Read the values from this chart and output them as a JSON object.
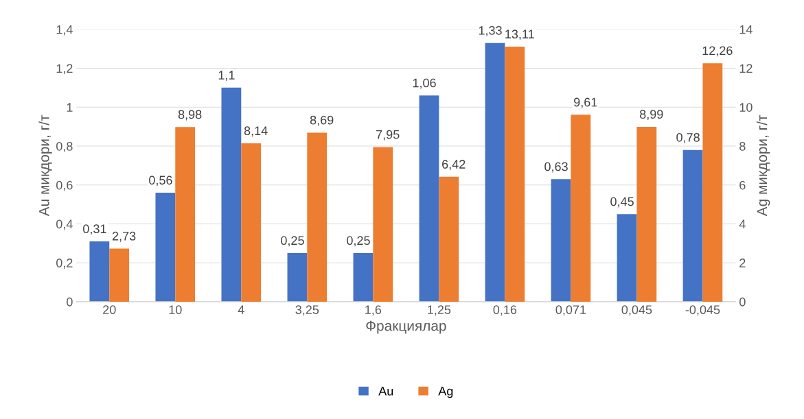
{
  "chart_data": {
    "type": "bar",
    "xlabel": "Фракциялар",
    "ylabel": "Au микдори, г/т",
    "y2label": "Ag микдори, г/т",
    "categories": [
      "20",
      "10",
      "4",
      "3,25",
      "1,6",
      "1,25",
      "0,16",
      "0,071",
      "0,045",
      "-0,045"
    ],
    "series": [
      {
        "name": "Au",
        "color": "#4472c4",
        "values": [
          0.31,
          0.56,
          1.1,
          0.25,
          0.25,
          1.06,
          1.33,
          0.63,
          0.45,
          0.78
        ],
        "value_labels": [
          "0,31",
          "0,56",
          "1,1",
          "0,25",
          "0,25",
          "1,06",
          "1,33",
          "0,63",
          "0,45",
          "0,78"
        ]
      },
      {
        "name": "Ag",
        "color": "#ed7d31",
        "axis": "y2",
        "values": [
          2.73,
          8.98,
          8.14,
          8.69,
          7.95,
          6.42,
          13.11,
          9.61,
          8.99,
          12.26
        ],
        "value_labels": [
          "2,73",
          "8,98",
          "8,14",
          "8,69",
          "7,95",
          "6,42",
          "13,11",
          "9,61",
          "8,99",
          "12,26"
        ]
      }
    ],
    "ylim": [
      0,
      1.4
    ],
    "yticks": [
      0,
      {
        "value": 0.2,
        "label": "0,2"
      },
      {
        "value": 0.4,
        "label": "0,4"
      },
      {
        "value": 0.6,
        "label": "0,6"
      },
      {
        "value": 0.8,
        "label": "0,8"
      },
      1,
      {
        "value": 1.2,
        "label": "1,2"
      },
      {
        "value": 1.4,
        "label": "1,4"
      }
    ],
    "y2lim": [
      0,
      14
    ],
    "y2ticks": [
      0,
      2,
      4,
      6,
      8,
      10,
      12,
      14
    ],
    "grid": "y",
    "legend": "bottom"
  }
}
